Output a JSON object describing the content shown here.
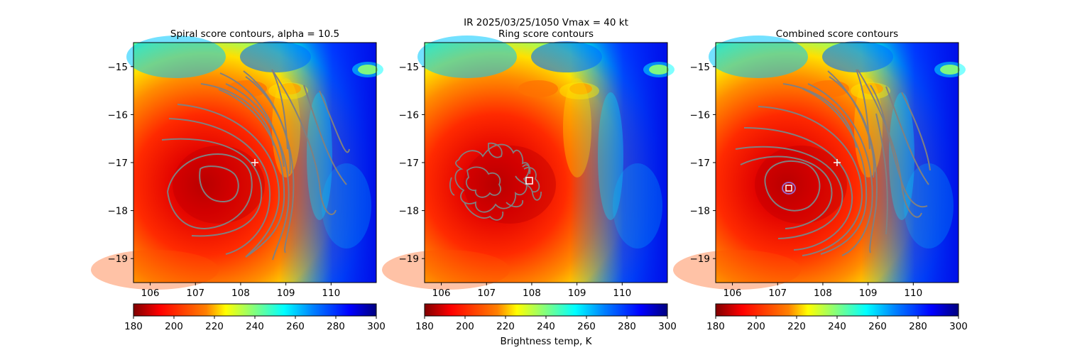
{
  "figure": {
    "suptitle_line1": "IR  2025/03/25/1050    Vmax = 40 kt"
  },
  "chart_data": [
    {
      "type": "heatmap",
      "title": "Spiral score contours, alpha = 10.5",
      "xlim": [
        105.63,
        111.0
      ],
      "ylim": [
        -19.5,
        -14.5
      ],
      "xticks": [
        106,
        107,
        108,
        109,
        110
      ],
      "yticks": [
        -15,
        -16,
        -17,
        -18,
        -19
      ],
      "colormap": "jet",
      "crange": [
        180,
        300
      ],
      "contour_color": "#808080",
      "marker": {
        "kind": "plus",
        "x": 108.25,
        "y": -16.95,
        "color": "#ffffff"
      }
    },
    {
      "type": "heatmap",
      "title": "Ring score contours",
      "xlim": [
        105.63,
        111.0
      ],
      "ylim": [
        -19.5,
        -14.5
      ],
      "xticks": [
        106,
        107,
        108,
        109,
        110
      ],
      "yticks": [
        -15,
        -16,
        -17,
        -18,
        -19
      ],
      "colormap": "jet",
      "crange": [
        180,
        300
      ],
      "contour_color": "#808080",
      "marker": {
        "kind": "square",
        "x": 107.88,
        "y": -17.33,
        "color": "#ffffff"
      }
    },
    {
      "type": "heatmap",
      "title": "Combined score contours",
      "xlim": [
        105.63,
        111.0
      ],
      "ylim": [
        -19.5,
        -14.5
      ],
      "xticks": [
        106,
        107,
        108,
        109,
        110
      ],
      "yticks": [
        -15,
        -16,
        -17,
        -18,
        -19
      ],
      "colormap": "jet",
      "crange": [
        180,
        300
      ],
      "contour_color": "#808080",
      "marker": {
        "kind": "plus",
        "x": 108.25,
        "y": -16.95,
        "color": "#ffffff"
      },
      "marker2": {
        "kind": "square",
        "x": 107.23,
        "y": -17.52,
        "color": "#ffffff"
      }
    }
  ],
  "colorbars": [
    {
      "ticks": [
        180,
        200,
        220,
        240,
        260,
        280,
        300
      ],
      "label": ""
    },
    {
      "ticks": [
        180,
        200,
        220,
        240,
        260,
        280,
        300
      ],
      "label": "Brightness temp, K"
    },
    {
      "ticks": [
        180,
        200,
        220,
        240,
        260,
        280,
        300
      ],
      "label": ""
    }
  ],
  "colors": {
    "jet": [
      "#800000",
      "#ff0000",
      "#ff8000",
      "#ffff00",
      "#80ff80",
      "#00ffff",
      "#0080ff",
      "#0000ff",
      "#000080"
    ]
  }
}
